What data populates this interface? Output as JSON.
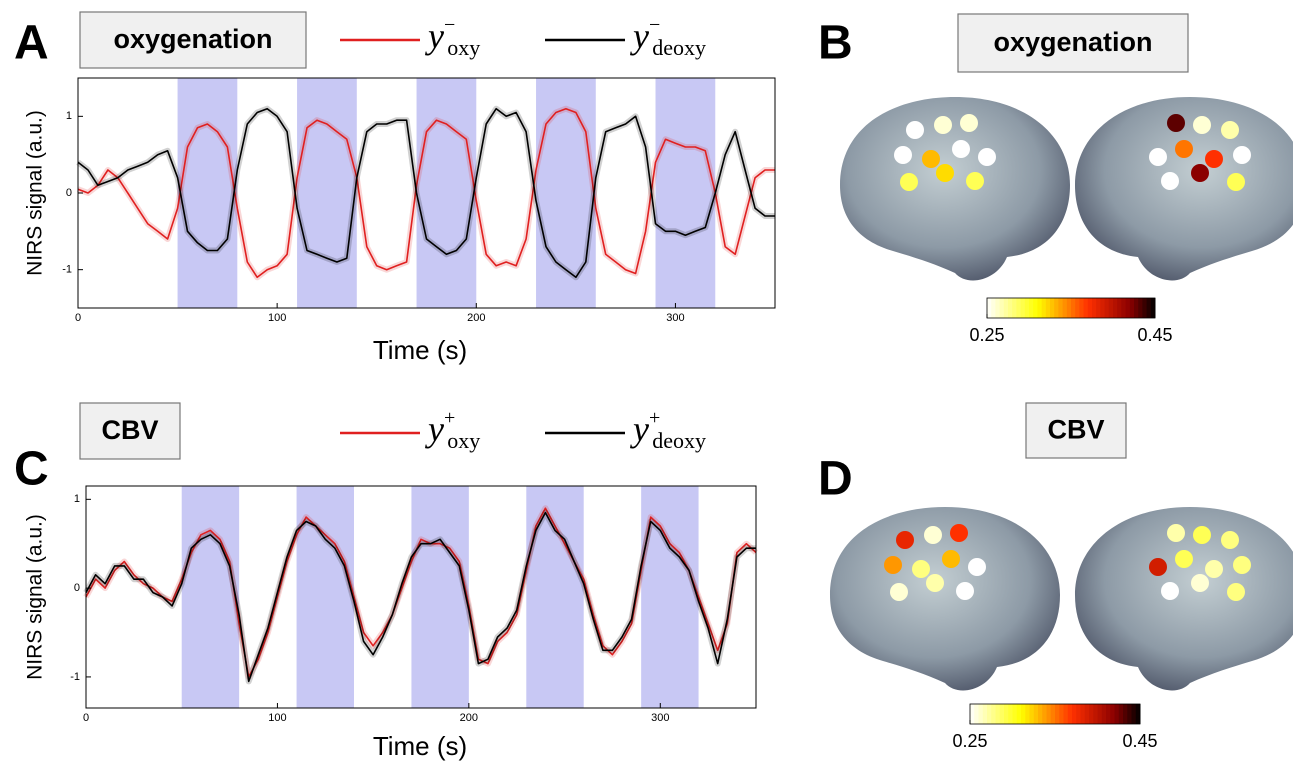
{
  "chart_data": [
    {
      "type": "line",
      "panel": "A",
      "title": "oxygenation",
      "ylabel": "NIRS signal (a.u.)",
      "xlabel": "Time (s)",
      "xlim": [
        0,
        350
      ],
      "ylim": [
        -1.5,
        1.5
      ],
      "xticks": [
        0,
        100,
        200,
        300
      ],
      "yticks": [
        -1,
        0,
        1
      ],
      "blocks": [
        [
          50,
          80
        ],
        [
          110,
          140
        ],
        [
          170,
          200
        ],
        [
          230,
          260
        ],
        [
          290,
          320
        ]
      ],
      "block_color": "#c8c8f4",
      "x": [
        0,
        5,
        10,
        15,
        20,
        25,
        30,
        35,
        40,
        45,
        50,
        55,
        60,
        65,
        70,
        75,
        80,
        85,
        90,
        95,
        100,
        105,
        110,
        115,
        120,
        125,
        130,
        135,
        140,
        145,
        150,
        155,
        160,
        165,
        170,
        175,
        180,
        185,
        190,
        195,
        200,
        205,
        210,
        215,
        220,
        225,
        230,
        235,
        240,
        245,
        250,
        255,
        260,
        265,
        270,
        275,
        280,
        285,
        290,
        295,
        300,
        305,
        310,
        315,
        320,
        325,
        330,
        335,
        340,
        345,
        350
      ],
      "series": [
        {
          "name": "y",
          "name_sup": "−",
          "name_sub": "oxy",
          "color": "#e02020",
          "values": [
            0.05,
            0,
            0.1,
            0.3,
            0.2,
            0,
            -0.2,
            -0.4,
            -0.5,
            -0.6,
            -0.2,
            0.6,
            0.85,
            0.9,
            0.8,
            0.6,
            -0.2,
            -0.9,
            -1.1,
            -1.0,
            -0.95,
            -0.8,
            0.2,
            0.85,
            0.95,
            0.9,
            0.8,
            0.7,
            0.2,
            -0.7,
            -0.95,
            -1.0,
            -0.95,
            -0.9,
            0.1,
            0.8,
            0.95,
            0.9,
            0.8,
            0.7,
            -0.1,
            -0.8,
            -0.95,
            -0.9,
            -0.95,
            -0.6,
            0.3,
            0.9,
            1.05,
            1.1,
            1.05,
            0.8,
            -0.2,
            -0.8,
            -0.9,
            -1.0,
            -1.05,
            -0.5,
            0.4,
            0.7,
            0.65,
            0.6,
            0.6,
            0.55,
            0.0,
            -0.7,
            -0.8,
            -0.3,
            0.2,
            0.3,
            0.3
          ]
        },
        {
          "name": "y",
          "name_sup": "−",
          "name_sub": "deoxy",
          "color": "#000000",
          "values": [
            0.4,
            0.3,
            0.1,
            0.15,
            0.2,
            0.3,
            0.35,
            0.4,
            0.5,
            0.55,
            0.2,
            -0.5,
            -0.65,
            -0.75,
            -0.75,
            -0.6,
            0.3,
            0.9,
            1.05,
            1.1,
            1.0,
            0.8,
            -0.2,
            -0.75,
            -0.8,
            -0.85,
            -0.9,
            -0.85,
            0.2,
            0.8,
            0.9,
            0.9,
            0.95,
            0.95,
            0.0,
            -0.6,
            -0.7,
            -0.8,
            -0.75,
            -0.6,
            0.2,
            0.9,
            1.1,
            1.0,
            1.05,
            0.8,
            -0.1,
            -0.7,
            -0.9,
            -1.0,
            -1.1,
            -0.9,
            0.2,
            0.8,
            0.85,
            0.9,
            1.0,
            0.6,
            -0.4,
            -0.5,
            -0.5,
            -0.55,
            -0.5,
            -0.45,
            0.0,
            0.5,
            0.8,
            0.3,
            -0.2,
            -0.3,
            -0.3
          ]
        }
      ]
    },
    {
      "type": "brainmap",
      "panel": "B",
      "title": "oxygenation",
      "colormap": "hot_r",
      "colorbar": {
        "lim": [
          0.25,
          0.45
        ],
        "ticks": [
          0.25,
          0.45
        ]
      },
      "hemispheres": [
        {
          "values": [
            0.25,
            0.26,
            0.26,
            0.25,
            0.33,
            0.25,
            0.25,
            0.29,
            0.32,
            0.29
          ]
        },
        {
          "values": [
            0.27,
            0.26,
            0.43,
            0.25,
            0.37,
            0.35,
            0.25,
            0.29,
            0.42,
            0.25
          ]
        }
      ]
    },
    {
      "type": "line",
      "panel": "C",
      "title": "CBV",
      "ylabel": "NIRS signal (a.u.)",
      "xlabel": "Time (s)",
      "xlim": [
        0,
        350
      ],
      "ylim": [
        -1.35,
        1.15
      ],
      "xticks": [
        0,
        100,
        200,
        300
      ],
      "yticks": [
        -1,
        0,
        1
      ],
      "blocks": [
        [
          50,
          80
        ],
        [
          110,
          140
        ],
        [
          170,
          200
        ],
        [
          230,
          260
        ],
        [
          290,
          320
        ]
      ],
      "block_color": "#c8c8f4",
      "x": [
        0,
        5,
        10,
        15,
        20,
        25,
        30,
        35,
        40,
        45,
        50,
        55,
        60,
        65,
        70,
        75,
        80,
        85,
        90,
        95,
        100,
        105,
        110,
        115,
        120,
        125,
        130,
        135,
        140,
        145,
        150,
        155,
        160,
        165,
        170,
        175,
        180,
        185,
        190,
        195,
        200,
        205,
        210,
        215,
        220,
        225,
        230,
        235,
        240,
        245,
        250,
        255,
        260,
        265,
        270,
        275,
        280,
        285,
        290,
        295,
        300,
        305,
        310,
        315,
        320,
        325,
        330,
        335,
        340,
        345,
        350
      ],
      "series": [
        {
          "name": "y",
          "name_sup": "+",
          "name_sub": "oxy",
          "color": "#e02020",
          "values": [
            -0.1,
            0.1,
            0.0,
            0.2,
            0.3,
            0.15,
            0.05,
            0.0,
            -0.1,
            -0.15,
            0.1,
            0.4,
            0.6,
            0.65,
            0.55,
            0.3,
            -0.4,
            -1.0,
            -0.8,
            -0.5,
            -0.1,
            0.3,
            0.6,
            0.8,
            0.7,
            0.6,
            0.5,
            0.3,
            -0.1,
            -0.5,
            -0.65,
            -0.5,
            -0.3,
            0.0,
            0.3,
            0.55,
            0.5,
            0.5,
            0.45,
            0.3,
            -0.2,
            -0.8,
            -0.85,
            -0.6,
            -0.5,
            -0.3,
            0.2,
            0.7,
            0.9,
            0.7,
            0.5,
            0.3,
            0.1,
            -0.3,
            -0.65,
            -0.75,
            -0.6,
            -0.4,
            0.2,
            0.8,
            0.7,
            0.5,
            0.4,
            0.2,
            -0.1,
            -0.4,
            -0.7,
            -0.4,
            0.4,
            0.5,
            0.4
          ]
        },
        {
          "name": "y",
          "name_sup": "+",
          "name_sub": "deoxy",
          "color": "#000000",
          "values": [
            -0.05,
            0.15,
            0.05,
            0.25,
            0.25,
            0.1,
            0.1,
            -0.05,
            -0.1,
            -0.2,
            0.05,
            0.45,
            0.55,
            0.6,
            0.5,
            0.25,
            -0.3,
            -1.05,
            -0.75,
            -0.45,
            -0.05,
            0.35,
            0.65,
            0.75,
            0.7,
            0.55,
            0.45,
            0.25,
            -0.15,
            -0.6,
            -0.75,
            -0.55,
            -0.3,
            0.05,
            0.35,
            0.5,
            0.5,
            0.55,
            0.4,
            0.25,
            -0.25,
            -0.85,
            -0.8,
            -0.55,
            -0.45,
            -0.25,
            0.25,
            0.65,
            0.85,
            0.65,
            0.55,
            0.3,
            0.05,
            -0.35,
            -0.7,
            -0.7,
            -0.55,
            -0.35,
            0.25,
            0.75,
            0.65,
            0.45,
            0.35,
            0.2,
            -0.15,
            -0.45,
            -0.85,
            -0.35,
            0.35,
            0.45,
            0.45
          ]
        }
      ]
    },
    {
      "type": "brainmap",
      "panel": "D",
      "title": "CBV",
      "colormap": "hot_r",
      "colorbar": {
        "lim": [
          0.25,
          0.45
        ],
        "ticks": [
          0.25,
          0.45
        ]
      },
      "hemispheres": [
        {
          "values": [
            0.38,
            0.26,
            0.37,
            0.34,
            0.28,
            0.33,
            0.25,
            0.26,
            0.27,
            0.25
          ]
        },
        {
          "values": [
            0.28,
            0.29,
            0.27,
            0.28,
            0.27,
            0.29,
            0.39,
            0.28,
            0.26,
            0.25
          ]
        }
      ]
    }
  ]
}
